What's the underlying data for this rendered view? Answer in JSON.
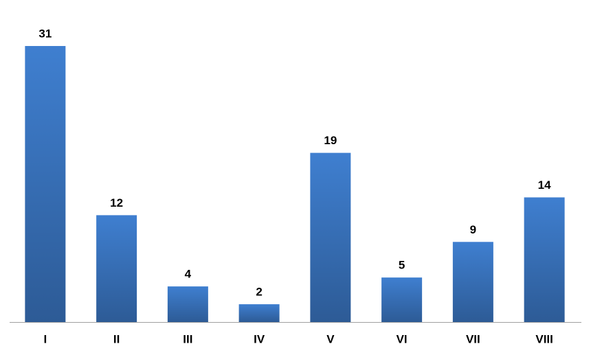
{
  "chart_data": {
    "type": "bar",
    "categories": [
      "I",
      "II",
      "III",
      "IV",
      "V",
      "VI",
      "VII",
      "VIII"
    ],
    "values": [
      31,
      12,
      4,
      2,
      19,
      5,
      9,
      14
    ],
    "color": "#3f7fd0"
  }
}
